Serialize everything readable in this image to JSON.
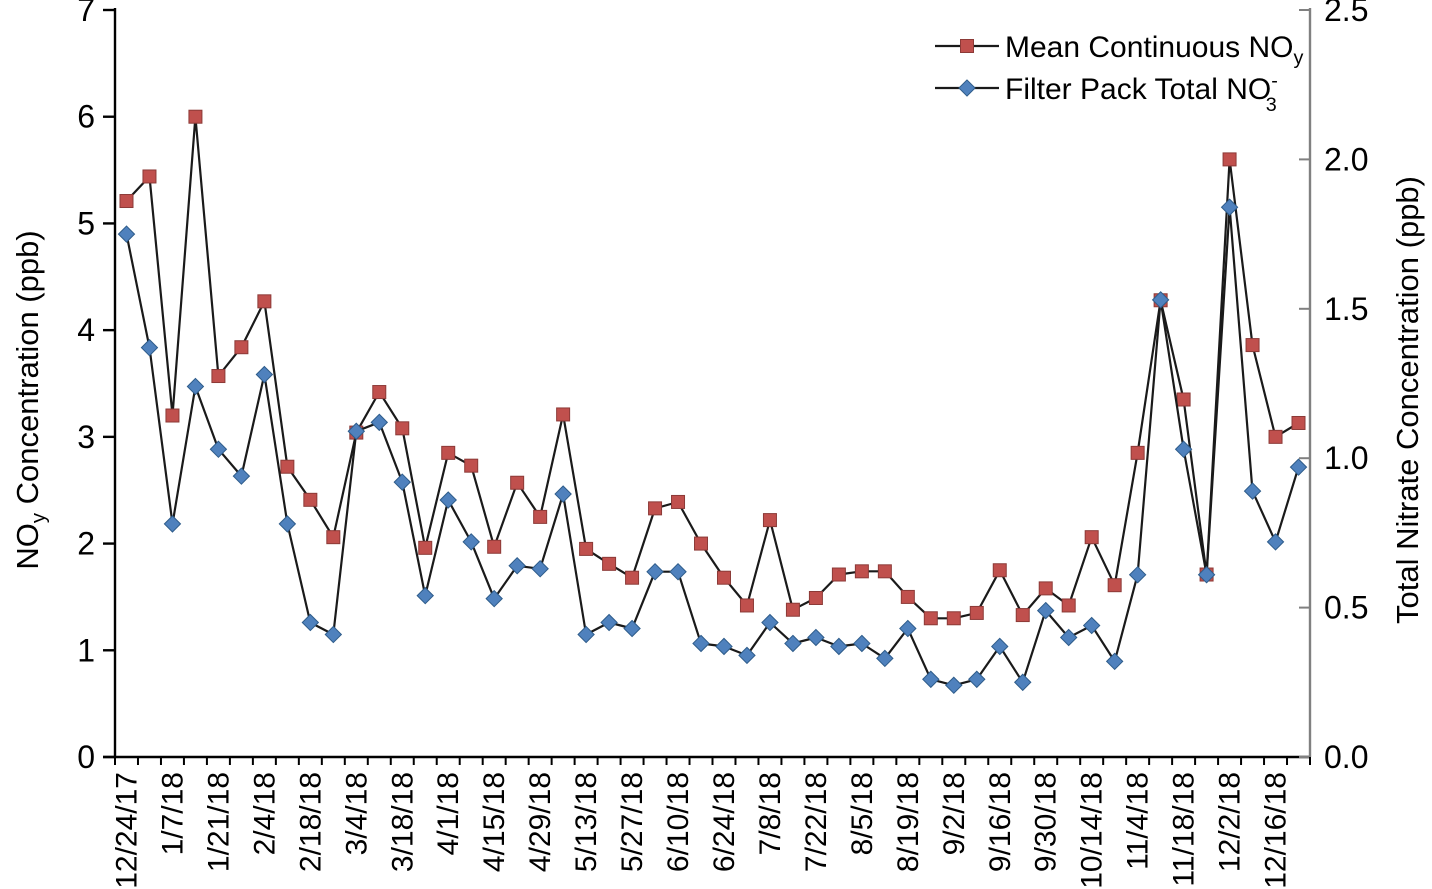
{
  "chart_data": {
    "type": "line",
    "title": "",
    "x_axis": {
      "label_every": 2,
      "categories": [
        "12/24/17",
        "",
        "1/7/18",
        "",
        "1/21/18",
        "",
        "2/4/18",
        "",
        "2/18/18",
        "",
        "3/4/18",
        "",
        "3/18/18",
        "",
        "4/1/18",
        "",
        "4/15/18",
        "",
        "4/29/18",
        "",
        "5/13/18",
        "",
        "5/27/18",
        "",
        "6/10/18",
        "",
        "6/24/18",
        "",
        "7/8/18",
        "",
        "7/22/18",
        "",
        "8/5/18",
        "",
        "8/19/18",
        "",
        "9/2/18",
        "",
        "9/16/18",
        "",
        "9/30/18",
        "",
        "10/14/18",
        "",
        "11/4/18",
        "",
        "11/18/18",
        "",
        "12/2/18",
        "",
        "12/16/18",
        ""
      ]
    },
    "y_left": {
      "title": "NOy Concentration (ppb)",
      "title_parts": [
        {
          "text": "NO"
        },
        {
          "sub": "y"
        },
        {
          "text": " Concentration (ppb)"
        }
      ],
      "min": 0,
      "max": 7,
      "step": 1,
      "tick_labels": [
        "0",
        "1",
        "2",
        "3",
        "4",
        "5",
        "6",
        "7"
      ]
    },
    "y_right": {
      "title": "Total Nitrate Concentration (ppb)",
      "title_parts": [
        {
          "text": "Total Nitrate Concentration (ppb)"
        }
      ],
      "min": 0,
      "max": 2.5,
      "step": 0.5,
      "tick_labels": [
        "0.0",
        "0.5",
        "1.0",
        "1.5",
        "2.0",
        "2.5"
      ]
    },
    "legend": {
      "position": "top-right",
      "entries": [
        {
          "name": "Mean Continuous NOy",
          "parts": [
            {
              "text": "Mean Continuous NO"
            },
            {
              "sub": "y"
            }
          ],
          "marker": "square",
          "color": "#C0504D"
        },
        {
          "name": "Filter Pack Total NO3-",
          "parts": [
            {
              "text": "Filter Pack Total NO"
            },
            {
              "stack": {
                "top": "-",
                "bottom": "3"
              }
            }
          ],
          "marker": "diamond",
          "color": "#4F81BD"
        }
      ]
    },
    "series": [
      {
        "name": "Mean Continuous NOy",
        "id": "mean-continuous-noy",
        "axis": "left",
        "marker": "square",
        "marker_color": "#C0504D",
        "line_color": "#1a1a1a",
        "values": [
          5.21,
          5.44,
          3.2,
          6.0,
          3.57,
          3.84,
          4.27,
          2.72,
          2.41,
          2.06,
          3.04,
          3.42,
          3.08,
          1.96,
          2.85,
          2.73,
          1.97,
          2.57,
          2.25,
          3.21,
          1.95,
          1.81,
          1.68,
          2.33,
          2.39,
          2.0,
          1.68,
          1.42,
          2.22,
          1.38,
          1.49,
          1.71,
          1.74,
          1.74,
          1.5,
          1.3,
          1.3,
          1.35,
          1.75,
          1.33,
          1.58,
          1.42,
          2.06,
          1.61,
          2.85,
          4.28,
          3.35,
          1.71,
          5.6,
          3.86,
          3.0,
          3.13
        ]
      },
      {
        "name": "Filter Pack Total NO3-",
        "id": "filter-pack-total-no3",
        "axis": "right",
        "marker": "diamond",
        "marker_color": "#4F81BD",
        "line_color": "#1a1a1a",
        "values": [
          1.75,
          1.37,
          0.78,
          1.24,
          1.03,
          0.94,
          1.28,
          0.78,
          0.45,
          0.41,
          1.09,
          1.12,
          0.92,
          0.54,
          0.86,
          0.72,
          0.53,
          0.64,
          0.63,
          0.88,
          0.41,
          0.45,
          0.43,
          0.62,
          0.62,
          0.38,
          0.37,
          0.34,
          0.45,
          0.38,
          0.4,
          0.37,
          0.38,
          0.33,
          0.43,
          0.26,
          0.24,
          0.26,
          0.37,
          0.25,
          0.49,
          0.4,
          0.44,
          0.32,
          0.61,
          1.53,
          1.03,
          0.61,
          1.84,
          0.89,
          0.72,
          0.97
        ]
      }
    ],
    "layout_hints": {
      "grid": false,
      "left_axis_color": "#000000",
      "bottom_axis_color": "#000000",
      "right_axis_color": "#808080",
      "background": "#ffffff"
    }
  }
}
